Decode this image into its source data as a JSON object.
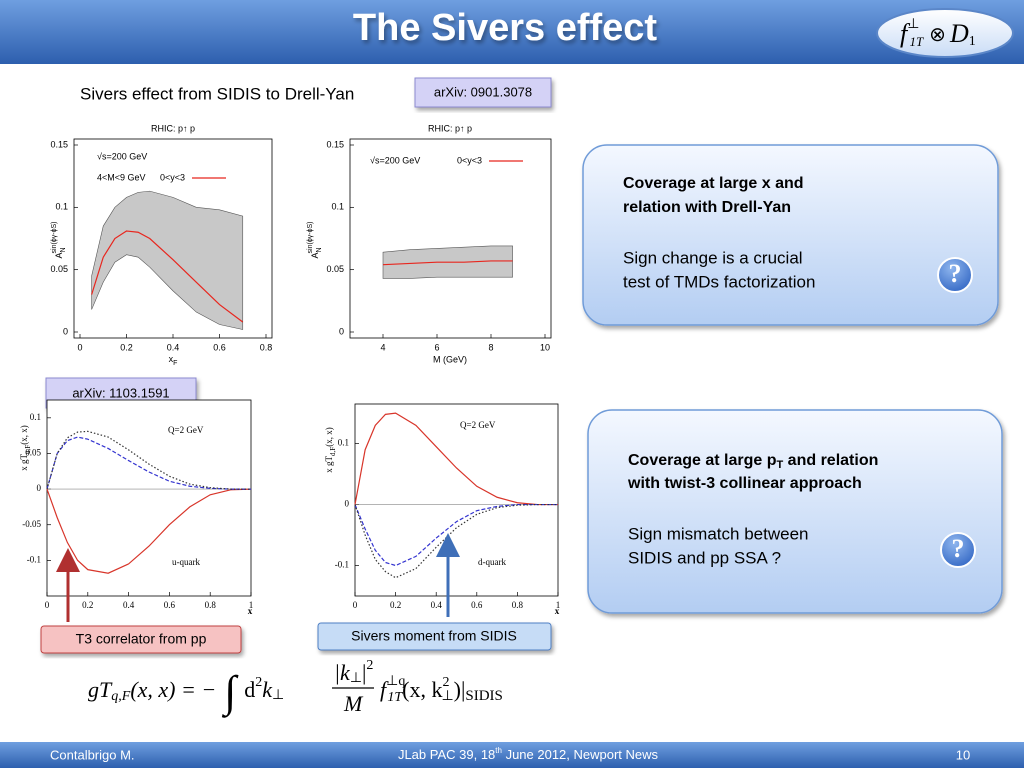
{
  "slide": {
    "title": "The Sivers effect",
    "logo": [
      "f",
      "⊥",
      "1T",
      "⊗",
      "D",
      "1"
    ],
    "subtitle": "Sivers effect from SIDIS to Drell-Yan",
    "refs": [
      "arXiv: 0901.3078",
      "arXiv: 1103.1591"
    ],
    "panels": [
      {
        "heading": [
          "Coverage at large x and",
          "relation with Drell-Yan"
        ],
        "text": [
          "Sign change is a crucial",
          "test of TMDs factorization"
        ],
        "icon": "?"
      },
      {
        "heading": [
          "Coverage at large p",
          "T",
          " and relation",
          "with twist-3 collinear approach"
        ],
        "text": [
          "Sign mismatch between",
          "SIDIS and pp SSA ?"
        ],
        "icon": "?"
      }
    ],
    "callouts": [
      "T3 correlator from pp",
      "Sivers moment from SIDIS"
    ],
    "equation": [
      "gT",
      "q,F",
      "(x, x) = −",
      "∫",
      "d",
      "2",
      "k",
      "⊥",
      "|k",
      "⊥",
      "|",
      "2",
      "M",
      "f",
      "⊥q",
      "1T",
      "(x, k",
      "2",
      "⊥",
      ")|",
      "SIDIS"
    ],
    "footer": {
      "author": "Contalbrigo M.",
      "event": [
        "JLab PAC 39, 18",
        "th",
        " June 2012, Newport News"
      ],
      "page": "10"
    }
  },
  "chart_data": [
    {
      "type": "line",
      "title": "RHIC: p↑ p",
      "x_label": [
        "x",
        "F"
      ],
      "y_label": [
        "A",
        "N",
        "sin(ϕγ-ϕS)"
      ],
      "annotations": [
        "√s=200 GeV",
        "4<M<9 GeV"
      ],
      "xlim": [
        0,
        0.8
      ],
      "xticks": [
        0,
        0.2,
        0.4,
        0.6,
        0.8
      ],
      "ylim": [
        0,
        0.15
      ],
      "yticks": [
        0,
        0.05,
        0.1,
        0.15
      ],
      "x": [
        0.05,
        0.1,
        0.15,
        0.2,
        0.25,
        0.3,
        0.4,
        0.5,
        0.6,
        0.7
      ],
      "band": {
        "color": "#c8c8c8",
        "upper": [
          0.045,
          0.085,
          0.1,
          0.108,
          0.112,
          0.113,
          0.108,
          0.1,
          0.098,
          0.093
        ],
        "lower": [
          0.018,
          0.04,
          0.056,
          0.062,
          0.06,
          0.052,
          0.033,
          0.016,
          0.006,
          0.002
        ]
      },
      "series": [
        {
          "name": "0<y<3",
          "color": "#e8261e",
          "dash": "solid",
          "values": [
            0.03,
            0.06,
            0.075,
            0.081,
            0.08,
            0.075,
            0.058,
            0.04,
            0.022,
            0.008
          ]
        }
      ]
    },
    {
      "type": "line",
      "title": "RHIC: p↑ p",
      "x_label": "M (GeV)",
      "y_label": [
        "A",
        "N",
        "sin(ϕγ-ϕS)"
      ],
      "annotations": [
        "√s=200 GeV"
      ],
      "xlim": [
        3,
        10
      ],
      "xticks": [
        4,
        6,
        8,
        10
      ],
      "ylim": [
        0,
        0.15
      ],
      "yticks": [
        0,
        0.05,
        0.1,
        0.15
      ],
      "x": [
        4,
        5,
        6,
        7,
        8,
        8.8
      ],
      "band": {
        "color": "#c8c8c8",
        "upper": [
          0.064,
          0.066,
          0.067,
          0.068,
          0.069,
          0.069
        ],
        "lower": [
          0.043,
          0.043,
          0.044,
          0.044,
          0.044,
          0.044
        ]
      },
      "series": [
        {
          "name": "0<y<3",
          "color": "#e8261e",
          "dash": "solid",
          "values": [
            0.054,
            0.055,
            0.056,
            0.056,
            0.057,
            0.057
          ]
        }
      ]
    },
    {
      "type": "line",
      "x_label": "x",
      "y_label": [
        "x gT",
        "u,F",
        "(x, x)"
      ],
      "annotations": [
        "Q=2 GeV",
        "u-quark"
      ],
      "xlim": [
        0,
        1
      ],
      "xticks": [
        0,
        0.2,
        0.4,
        0.6,
        0.8,
        1
      ],
      "ylim": [
        -0.15,
        0.125
      ],
      "yticks": [
        -0.1,
        -0.05,
        0,
        0.05,
        0.1
      ],
      "x": [
        0,
        0.05,
        0.1,
        0.15,
        0.2,
        0.3,
        0.4,
        0.5,
        0.6,
        0.7,
        0.8,
        0.9,
        1
      ],
      "series": [
        {
          "color": "#d8352a",
          "dash": "solid",
          "values": [
            0,
            -0.04,
            -0.075,
            -0.1,
            -0.113,
            -0.118,
            -0.105,
            -0.08,
            -0.05,
            -0.025,
            -0.008,
            -0.001,
            0
          ]
        },
        {
          "color": "#3434d0",
          "dash": "dashed",
          "values": [
            0,
            0.05,
            0.068,
            0.073,
            0.07,
            0.057,
            0.04,
            0.024,
            0.011,
            0.004,
            0.001,
            0,
            0
          ]
        },
        {
          "color": "#333333",
          "dash": "dotted",
          "values": [
            0,
            0.05,
            0.072,
            0.08,
            0.081,
            0.073,
            0.055,
            0.035,
            0.018,
            0.007,
            0.002,
            0,
            0
          ]
        }
      ]
    },
    {
      "type": "line",
      "x_label": "x",
      "y_label": [
        "x gT",
        "d,F",
        "(x, x)"
      ],
      "annotations": [
        "Q=2 GeV",
        "d-quark"
      ],
      "xlim": [
        0,
        1
      ],
      "xticks": [
        0,
        0.2,
        0.4,
        0.6,
        0.8,
        1
      ],
      "ylim": [
        -0.15,
        0.165
      ],
      "yticks": [
        -0.1,
        0,
        0.1
      ],
      "x": [
        0,
        0.05,
        0.1,
        0.15,
        0.2,
        0.3,
        0.4,
        0.5,
        0.6,
        0.7,
        0.8,
        0.9,
        1
      ],
      "series": [
        {
          "color": "#d8352a",
          "dash": "solid",
          "values": [
            0,
            0.09,
            0.13,
            0.148,
            0.15,
            0.13,
            0.095,
            0.06,
            0.03,
            0.012,
            0.003,
            0,
            0
          ]
        },
        {
          "color": "#3434d0",
          "dash": "dashed",
          "values": [
            0,
            -0.04,
            -0.075,
            -0.095,
            -0.1,
            -0.085,
            -0.055,
            -0.028,
            -0.01,
            -0.003,
            0,
            0,
            0
          ]
        },
        {
          "color": "#333333",
          "dash": "dotted",
          "values": [
            0,
            -0.05,
            -0.09,
            -0.11,
            -0.12,
            -0.105,
            -0.07,
            -0.038,
            -0.016,
            -0.005,
            -0.001,
            0,
            0
          ]
        }
      ]
    }
  ]
}
